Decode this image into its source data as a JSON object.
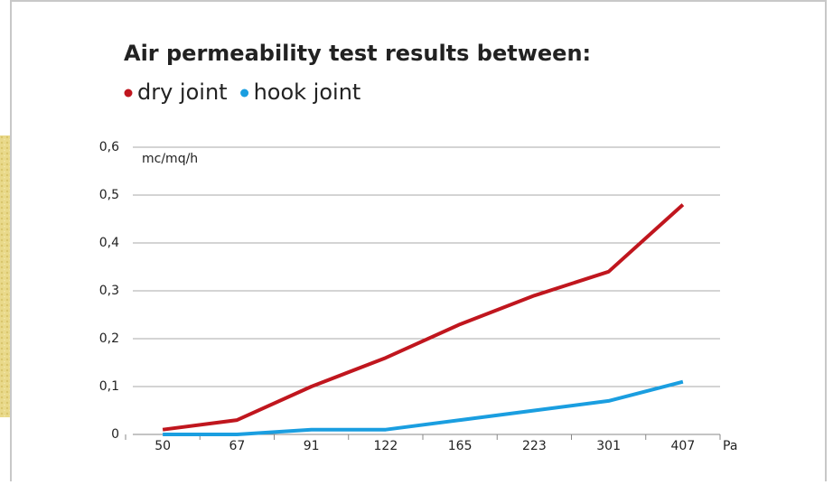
{
  "chart_data": {
    "type": "line",
    "title": "Air permeability test results between:",
    "y_label": "mc/mq/h",
    "x_label": "Pa",
    "categories": [
      "50",
      "67",
      "91",
      "122",
      "165",
      "223",
      "301",
      "407"
    ],
    "series": [
      {
        "name": "dry joint",
        "color": "#c0161e",
        "values": [
          0.01,
          0.03,
          0.1,
          0.16,
          0.23,
          0.29,
          0.34,
          0.48
        ]
      },
      {
        "name": "hook joint",
        "color": "#1a9ee0",
        "values": [
          0,
          0,
          0.01,
          0.01,
          0.03,
          0.05,
          0.07,
          0.11
        ]
      }
    ],
    "ylim": [
      0,
      0.6
    ],
    "yticks": [
      0,
      {
        "value": 0.1,
        "label": "0,1"
      },
      {
        "value": 0.2,
        "label": "0,2"
      },
      {
        "value": 0.3,
        "label": "0,3"
      },
      {
        "value": 0.4,
        "label": "0,4"
      },
      {
        "value": 0.5,
        "label": "0,5"
      },
      {
        "value": 0.6,
        "label": "0,6"
      }
    ],
    "grid": true
  }
}
